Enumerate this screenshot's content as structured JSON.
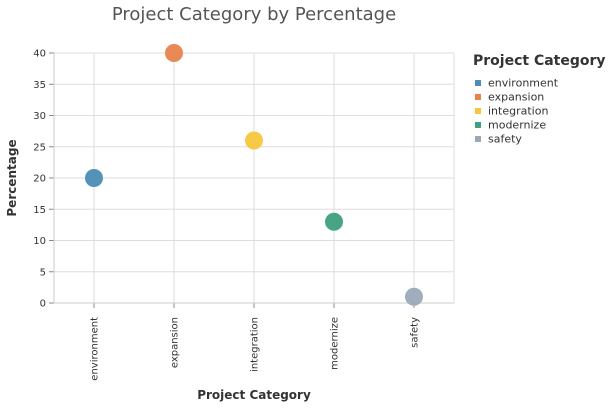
{
  "chart_data": {
    "type": "scatter",
    "title": "Project Category by Percentage",
    "xlabel": "Project Category",
    "ylabel": "Percentage",
    "categories": [
      "environment",
      "expansion",
      "integration",
      "modernize",
      "safety"
    ],
    "values": [
      20,
      40,
      26,
      13,
      1
    ],
    "colors": [
      "#4c8cb5",
      "#e8834e",
      "#f6c63c",
      "#3f9f80",
      "#9aa9b8"
    ],
    "ylim": [
      0,
      40
    ],
    "yticks": [
      0,
      5,
      10,
      15,
      20,
      25,
      30,
      35,
      40
    ],
    "grid": true,
    "legend": {
      "title": "Project Category",
      "placement": "right",
      "entries": [
        "environment",
        "expansion",
        "integration",
        "modernize",
        "safety"
      ]
    }
  }
}
